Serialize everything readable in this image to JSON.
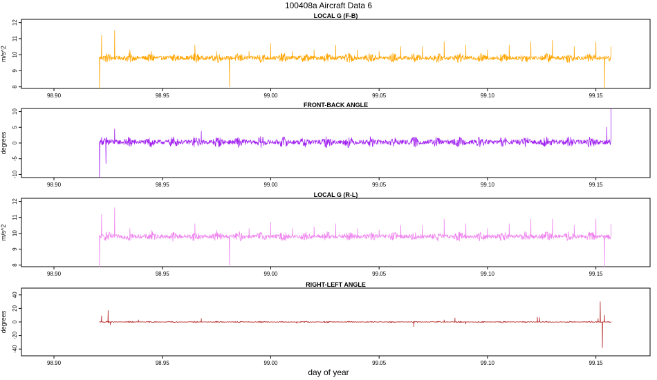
{
  "figure": {
    "title": "100408a   Aircraft Data 6",
    "xlabel": "day of year",
    "xlim": [
      98.885,
      99.175
    ],
    "x_ticks": [
      98.9,
      98.95,
      99.0,
      99.05,
      99.1,
      99.15
    ],
    "x_tick_labels": [
      "98.90",
      "98.95",
      "99.00",
      "99.05",
      "99.10",
      "99.15"
    ]
  },
  "chart_data": [
    {
      "type": "line",
      "title": "LOCAL G (F-B)",
      "ylabel": "m/s^2",
      "ylim": [
        7.9,
        12.2
      ],
      "y_ticks": [
        8,
        9,
        10,
        11,
        12
      ],
      "y_tick_labels": [
        "8",
        "9",
        "10",
        "11",
        "12"
      ],
      "color": "#FFA500",
      "x_range": [
        98.921,
        99.157
      ],
      "baseline": 9.8,
      "noise": 0.12,
      "x": [
        98.921,
        98.922,
        98.928,
        98.935,
        98.945,
        98.955,
        98.965,
        98.975,
        98.981,
        98.99,
        99.0,
        99.01,
        99.02,
        99.03,
        99.04,
        99.05,
        99.06,
        99.07,
        99.08,
        99.09,
        99.1,
        99.11,
        99.12,
        99.13,
        99.14,
        99.15,
        99.154,
        99.157
      ],
      "y": [
        7.9,
        11.2,
        11.5,
        10.3,
        10.2,
        10.0,
        10.6,
        10.2,
        8.0,
        10.2,
        10.7,
        10.2,
        10.3,
        10.6,
        10.3,
        10.2,
        10.5,
        10.5,
        10.8,
        10.6,
        10.3,
        10.6,
        10.8,
        10.9,
        10.5,
        10.8,
        7.9,
        10.5
      ]
    },
    {
      "type": "line",
      "title": "FRONT-BACK ANGLE",
      "ylabel": "degrees",
      "ylim": [
        -11,
        11
      ],
      "y_ticks": [
        -10,
        -5,
        0,
        5,
        10
      ],
      "y_tick_labels": [
        "-10",
        "-5",
        "0",
        "5",
        "10"
      ],
      "color": "#A020F0",
      "x_range": [
        98.921,
        99.157
      ],
      "baseline": 0.3,
      "noise": 0.7,
      "x": [
        98.921,
        98.922,
        98.924,
        98.928,
        98.935,
        98.945,
        98.955,
        98.965,
        98.968,
        98.975,
        98.985,
        98.995,
        99.005,
        99.015,
        99.025,
        99.035,
        99.045,
        99.055,
        99.065,
        99.075,
        99.085,
        99.095,
        99.105,
        99.115,
        99.125,
        99.135,
        99.145,
        99.15,
        99.155,
        99.157
      ],
      "y": [
        -11,
        1.8,
        -6.5,
        4.5,
        -1.0,
        0.0,
        0.3,
        0.6,
        3.8,
        0.5,
        0.2,
        0.4,
        0.6,
        0.3,
        0.2,
        0.1,
        0.0,
        0.3,
        0.2,
        0.4,
        0.6,
        0.3,
        0.2,
        0.5,
        -0.3,
        -0.5,
        0.1,
        0.8,
        5.0,
        11.0
      ]
    },
    {
      "type": "line",
      "title": "LOCAL G (R-L)",
      "ylabel": "m/s^2",
      "ylim": [
        7.9,
        12.2
      ],
      "y_ticks": [
        8,
        9,
        10,
        11,
        12
      ],
      "y_tick_labels": [
        "8",
        "9",
        "10",
        "11",
        "12"
      ],
      "color": "#EE82EE",
      "x_range": [
        98.921,
        99.157
      ],
      "baseline": 9.8,
      "noise": 0.12,
      "x": [
        98.921,
        98.922,
        98.928,
        98.935,
        98.945,
        98.955,
        98.965,
        98.975,
        98.981,
        98.99,
        99.0,
        99.01,
        99.02,
        99.03,
        99.04,
        99.05,
        99.06,
        99.07,
        99.08,
        99.09,
        99.1,
        99.11,
        99.12,
        99.13,
        99.14,
        99.15,
        99.154,
        99.157
      ],
      "y": [
        7.9,
        11.2,
        11.6,
        10.3,
        10.2,
        10.0,
        10.6,
        10.2,
        8.0,
        10.3,
        10.7,
        10.3,
        10.4,
        10.6,
        10.3,
        10.2,
        10.5,
        10.5,
        10.9,
        10.6,
        10.3,
        10.6,
        10.9,
        10.9,
        10.5,
        10.9,
        7.9,
        10.6
      ]
    },
    {
      "type": "line",
      "title": "RIGHT-LEFT ANGLE",
      "ylabel": "degrees",
      "ylim": [
        -50,
        50
      ],
      "y_ticks": [
        -40,
        -20,
        0,
        20,
        40
      ],
      "y_tick_labels": [
        "-40",
        "-20",
        "0",
        "20",
        "40"
      ],
      "color": "#B22222",
      "x_range": [
        98.921,
        99.157
      ],
      "baseline": 0,
      "noise": 0.4,
      "x": [
        98.921,
        98.922,
        98.925,
        98.926,
        98.939,
        98.968,
        98.99,
        99.012,
        99.04,
        99.066,
        99.08,
        99.085,
        99.09,
        99.123,
        99.124,
        99.126,
        99.14,
        99.151,
        99.152,
        99.153,
        99.154,
        99.157
      ],
      "y": [
        0,
        9.0,
        17.0,
        -4.0,
        3.0,
        5.0,
        0.5,
        -2.0,
        0.2,
        -7.0,
        3.0,
        6.0,
        -3.0,
        7.0,
        6.5,
        0.0,
        0.5,
        5.0,
        30.0,
        -38.0,
        10.0,
        0.0
      ]
    }
  ]
}
